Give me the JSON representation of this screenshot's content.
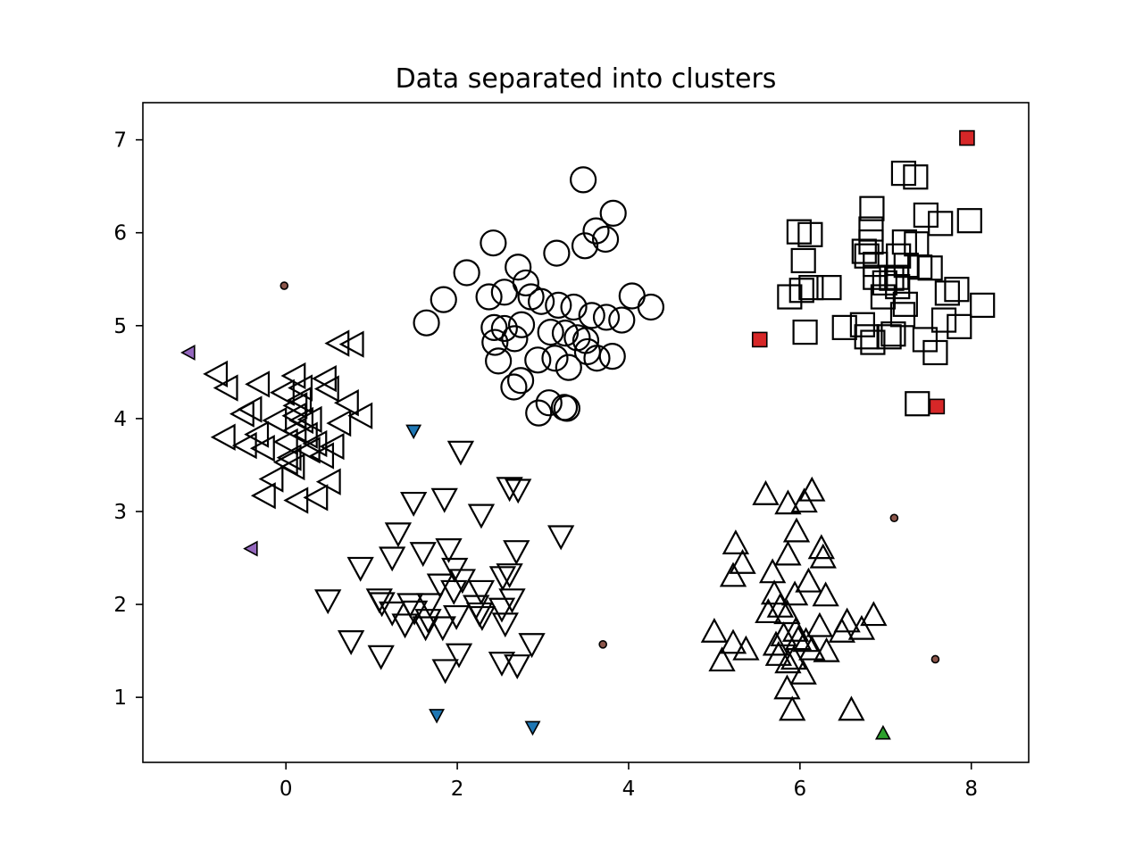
{
  "chart_data": {
    "type": "scatter",
    "title": "Data separated into clusters",
    "xlabel": "",
    "ylabel": "",
    "xlim": [
      -1.67,
      8.67
    ],
    "ylim": [
      0.3,
      7.4
    ],
    "xticks": [
      0,
      2,
      4,
      6,
      8
    ],
    "yticks": [
      1,
      2,
      3,
      4,
      5,
      6,
      7
    ],
    "grid": false,
    "legend": "none",
    "colors": {
      "cluster_outline": "#000000",
      "noise_fill": "#8c564b",
      "purple": "#9467bd",
      "blue": "#1f77b4",
      "green": "#2ca02c",
      "red": "#d62728"
    },
    "series": [
      {
        "marker": "circle",
        "size": "large",
        "fill": "none",
        "points": [
          [
            3.47,
            6.57
          ],
          [
            3.82,
            6.21
          ],
          [
            3.62,
            6.02
          ],
          [
            3.73,
            5.93
          ],
          [
            2.42,
            5.89
          ],
          [
            3.49,
            5.86
          ],
          [
            3.16,
            5.78
          ],
          [
            2.11,
            5.57
          ],
          [
            2.71,
            5.63
          ],
          [
            2.8,
            5.46
          ],
          [
            1.84,
            5.28
          ],
          [
            2.37,
            5.31
          ],
          [
            2.55,
            5.36
          ],
          [
            2.86,
            5.31
          ],
          [
            2.98,
            5.26
          ],
          [
            4.04,
            5.32
          ],
          [
            3.18,
            5.22
          ],
          [
            3.36,
            5.2
          ],
          [
            4.26,
            5.2
          ],
          [
            1.64,
            5.03
          ],
          [
            2.43,
            4.98
          ],
          [
            2.55,
            4.97
          ],
          [
            2.75,
            5.01
          ],
          [
            3.09,
            4.93
          ],
          [
            3.26,
            4.92
          ],
          [
            3.57,
            5.11
          ],
          [
            3.74,
            5.09
          ],
          [
            3.92,
            5.06
          ],
          [
            2.44,
            4.82
          ],
          [
            2.67,
            4.86
          ],
          [
            3.4,
            4.87
          ],
          [
            3.5,
            4.84
          ],
          [
            2.48,
            4.62
          ],
          [
            2.94,
            4.63
          ],
          [
            3.14,
            4.65
          ],
          [
            3.3,
            4.55
          ],
          [
            3.52,
            4.72
          ],
          [
            3.63,
            4.65
          ],
          [
            3.81,
            4.67
          ],
          [
            2.66,
            4.34
          ],
          [
            2.74,
            4.41
          ],
          [
            3.07,
            4.17
          ],
          [
            3.25,
            4.12
          ],
          [
            3.28,
            4.11
          ],
          [
            2.95,
            4.06
          ]
        ]
      },
      {
        "marker": "square",
        "size": "large",
        "fill": "none",
        "points": [
          [
            7.21,
            6.64
          ],
          [
            7.35,
            6.6
          ],
          [
            6.84,
            6.26
          ],
          [
            7.47,
            6.19
          ],
          [
            7.64,
            6.1
          ],
          [
            7.98,
            6.13
          ],
          [
            5.99,
            6.01
          ],
          [
            6.12,
            5.98
          ],
          [
            6.83,
            6.04
          ],
          [
            6.83,
            5.9
          ],
          [
            7.22,
            5.9
          ],
          [
            7.36,
            5.88
          ],
          [
            6.75,
            5.8
          ],
          [
            6.78,
            5.75
          ],
          [
            7.15,
            5.75
          ],
          [
            6.88,
            5.66
          ],
          [
            7.24,
            5.65
          ],
          [
            7.4,
            5.63
          ],
          [
            7.52,
            5.62
          ],
          [
            6.04,
            5.7
          ],
          [
            6.88,
            5.52
          ],
          [
            7.07,
            5.51
          ],
          [
            7.13,
            5.52
          ],
          [
            6.99,
            5.46
          ],
          [
            7.14,
            5.42
          ],
          [
            5.88,
            5.31
          ],
          [
            6.02,
            5.38
          ],
          [
            6.13,
            5.41
          ],
          [
            6.34,
            5.41
          ],
          [
            6.97,
            5.31
          ],
          [
            7.72,
            5.35
          ],
          [
            7.83,
            5.39
          ],
          [
            7.23,
            5.23
          ],
          [
            7.2,
            5.12
          ],
          [
            8.13,
            5.22
          ],
          [
            6.06,
            4.93
          ],
          [
            6.52,
            4.98
          ],
          [
            6.73,
            5.01
          ],
          [
            6.78,
            4.88
          ],
          [
            7.04,
            4.88
          ],
          [
            7.09,
            4.91
          ],
          [
            7.46,
            4.85
          ],
          [
            7.86,
            4.99
          ],
          [
            7.68,
            5.06
          ],
          [
            6.85,
            4.82
          ],
          [
            7.58,
            4.71
          ],
          [
            7.37,
            4.16
          ]
        ]
      },
      {
        "marker": "triangle-left",
        "size": "large",
        "fill": "none",
        "points": [
          [
            0.62,
            4.81
          ],
          [
            0.79,
            4.8
          ],
          [
            -0.8,
            4.48
          ],
          [
            0.11,
            4.46
          ],
          [
            0.47,
            4.43
          ],
          [
            -0.68,
            4.33
          ],
          [
            -0.31,
            4.37
          ],
          [
            0.19,
            4.33
          ],
          [
            0.5,
            4.32
          ],
          [
            -0.02,
            4.28
          ],
          [
            0.18,
            4.2
          ],
          [
            -0.4,
            4.1
          ],
          [
            0.13,
            4.14
          ],
          [
            0.73,
            4.17
          ],
          [
            0.89,
            4.03
          ],
          [
            -0.49,
            4.05
          ],
          [
            -0.11,
            3.98
          ],
          [
            0.12,
            4.03
          ],
          [
            0.2,
            3.98
          ],
          [
            0.3,
            3.99
          ],
          [
            0.64,
            3.95
          ],
          [
            0.12,
            3.87
          ],
          [
            -0.32,
            3.83
          ],
          [
            -0.71,
            3.8
          ],
          [
            -0.46,
            3.71
          ],
          [
            0.02,
            3.75
          ],
          [
            0.25,
            3.82
          ],
          [
            0.36,
            3.73
          ],
          [
            0.56,
            3.7
          ],
          [
            -0.25,
            3.68
          ],
          [
            0.28,
            3.66
          ],
          [
            0.44,
            3.6
          ],
          [
            0.06,
            3.58
          ],
          [
            0.02,
            3.53
          ],
          [
            0.1,
            3.48
          ],
          [
            0.52,
            3.32
          ],
          [
            -0.15,
            3.35
          ],
          [
            -0.24,
            3.17
          ],
          [
            0.14,
            3.12
          ],
          [
            0.37,
            3.15
          ]
        ]
      },
      {
        "marker": "triangle-down",
        "size": "large",
        "fill": "none",
        "points": [
          [
            2.04,
            3.65
          ],
          [
            2.61,
            3.26
          ],
          [
            2.71,
            3.24
          ],
          [
            1.49,
            3.1
          ],
          [
            1.85,
            3.14
          ],
          [
            2.28,
            2.97
          ],
          [
            3.21,
            2.74
          ],
          [
            1.31,
            2.77
          ],
          [
            1.6,
            2.56
          ],
          [
            1.9,
            2.6
          ],
          [
            1.24,
            2.51
          ],
          [
            2.69,
            2.58
          ],
          [
            0.87,
            2.4
          ],
          [
            1.97,
            2.39
          ],
          [
            2.53,
            2.3
          ],
          [
            2.61,
            2.33
          ],
          [
            1.8,
            2.22
          ],
          [
            2.06,
            2.27
          ],
          [
            1.96,
            2.15
          ],
          [
            2.28,
            2.15
          ],
          [
            0.49,
            2.05
          ],
          [
            1.09,
            2.06
          ],
          [
            1.12,
            2.02
          ],
          [
            1.45,
            2.01
          ],
          [
            1.68,
            2.01
          ],
          [
            2.64,
            2.06
          ],
          [
            1.24,
            1.92
          ],
          [
            1.5,
            1.93
          ],
          [
            1.66,
            1.84
          ],
          [
            2.22,
            1.99
          ],
          [
            2.26,
            1.91
          ],
          [
            2.52,
            1.96
          ],
          [
            1.99,
            1.88
          ],
          [
            2.29,
            1.87
          ],
          [
            1.39,
            1.79
          ],
          [
            1.63,
            1.76
          ],
          [
            1.83,
            1.76
          ],
          [
            2.56,
            1.8
          ],
          [
            0.76,
            1.61
          ],
          [
            2.87,
            1.58
          ],
          [
            1.11,
            1.45
          ],
          [
            2.02,
            1.47
          ],
          [
            2.52,
            1.38
          ],
          [
            2.7,
            1.35
          ],
          [
            1.86,
            1.3
          ]
        ]
      },
      {
        "marker": "triangle-up",
        "size": "large",
        "fill": "none",
        "points": [
          [
            5.6,
            3.18
          ],
          [
            6.14,
            3.22
          ],
          [
            5.86,
            3.08
          ],
          [
            6.05,
            3.1
          ],
          [
            5.96,
            2.78
          ],
          [
            5.25,
            2.65
          ],
          [
            6.25,
            2.6
          ],
          [
            5.86,
            2.53
          ],
          [
            6.27,
            2.5
          ],
          [
            5.33,
            2.44
          ],
          [
            5.22,
            2.3
          ],
          [
            5.68,
            2.34
          ],
          [
            6.1,
            2.24
          ],
          [
            5.7,
            2.11
          ],
          [
            5.94,
            2.1
          ],
          [
            6.3,
            2.09
          ],
          [
            5.77,
            1.97
          ],
          [
            5.85,
            1.9
          ],
          [
            5.63,
            1.91
          ],
          [
            6.86,
            1.88
          ],
          [
            6.55,
            1.81
          ],
          [
            6.23,
            1.76
          ],
          [
            6.72,
            1.73
          ],
          [
            6.49,
            1.7
          ],
          [
            5.95,
            1.71
          ],
          [
            5.81,
            1.66
          ],
          [
            5.0,
            1.7
          ],
          [
            5.98,
            1.62
          ],
          [
            6.07,
            1.6
          ],
          [
            5.72,
            1.56
          ],
          [
            5.22,
            1.58
          ],
          [
            5.37,
            1.51
          ],
          [
            6.14,
            1.51
          ],
          [
            6.31,
            1.49
          ],
          [
            5.75,
            1.45
          ],
          [
            5.93,
            1.41
          ],
          [
            5.86,
            1.37
          ],
          [
            5.09,
            1.39
          ],
          [
            6.04,
            1.25
          ],
          [
            5.85,
            1.09
          ],
          [
            6.6,
            0.86
          ],
          [
            5.91,
            0.86
          ]
        ]
      },
      {
        "marker": "circle",
        "size": "small",
        "fill": "#8c564b",
        "points": [
          [
            -0.02,
            5.43
          ],
          [
            7.1,
            2.93
          ],
          [
            3.7,
            1.57
          ],
          [
            7.58,
            1.41
          ]
        ]
      },
      {
        "marker": "triangle-left",
        "size": "small",
        "fill": "#9467bd",
        "points": [
          [
            -1.13,
            4.71
          ],
          [
            -0.4,
            2.6
          ]
        ]
      },
      {
        "marker": "triangle-down",
        "size": "small",
        "fill": "#1f77b4",
        "points": [
          [
            1.49,
            3.87
          ],
          [
            1.76,
            0.81
          ],
          [
            2.88,
            0.68
          ]
        ]
      },
      {
        "marker": "triangle-up",
        "size": "small",
        "fill": "#2ca02c",
        "points": [
          [
            6.97,
            0.61
          ]
        ]
      },
      {
        "marker": "square",
        "size": "small",
        "fill": "#d62728",
        "points": [
          [
            7.95,
            7.02
          ],
          [
            5.53,
            4.85
          ],
          [
            7.6,
            4.13
          ]
        ]
      }
    ]
  }
}
